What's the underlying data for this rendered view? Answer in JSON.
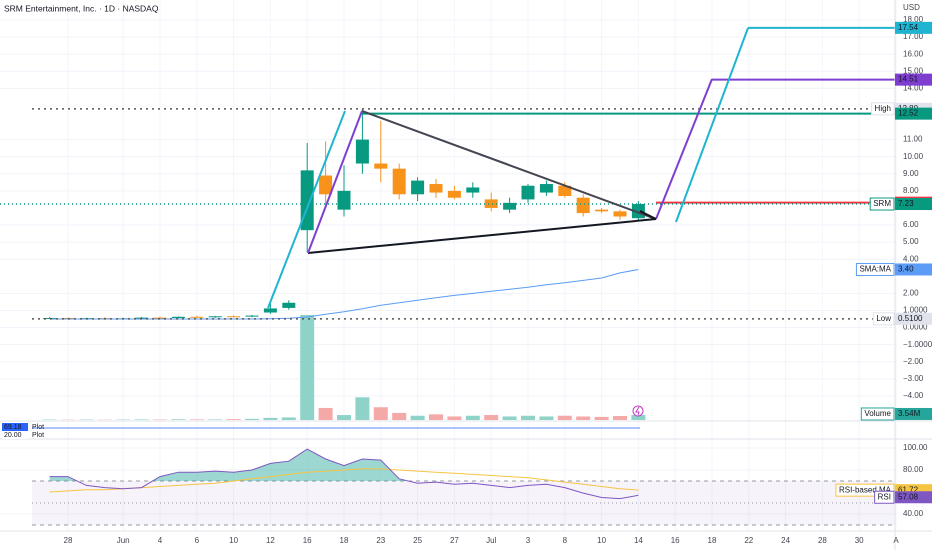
{
  "header": {
    "title": "SRM Entertainment, Inc. · 1D · NASDAQ",
    "currency": "USD"
  },
  "chart_data": {
    "type": "candlestick",
    "categories": [
      null,
      "28",
      null,
      null,
      "Jun",
      null,
      "4",
      null,
      "6",
      null,
      "10",
      null,
      "12",
      null,
      "16",
      null,
      "18",
      null,
      "23",
      null,
      "25",
      null,
      "27",
      null,
      "Jul",
      null,
      "3",
      null,
      "8",
      null,
      "10",
      null,
      "14",
      null,
      "16",
      null,
      "18",
      null,
      "22",
      null,
      "24",
      null,
      "28",
      null,
      "30",
      null,
      "A"
    ],
    "series": [
      {
        "name": "SRM",
        "up_color": "#089981",
        "down_color": "#f7931a",
        "open": [
          0.55,
          0.56,
          0.53,
          0.55,
          0.52,
          0.54,
          0.58,
          0.56,
          0.63,
          0.6,
          0.66,
          0.64,
          0.88,
          1.15,
          5.7,
          8.9,
          6.9,
          9.6,
          9.6,
          9.3,
          7.8,
          8.4,
          8.0,
          7.9,
          7.5,
          6.9,
          7.5,
          7.9,
          8.3,
          7.6,
          6.9,
          6.8,
          6.4,
          null,
          null,
          null,
          null,
          null,
          null,
          null,
          null,
          null,
          null,
          null,
          null,
          null,
          null
        ],
        "high": [
          0.62,
          0.6,
          0.58,
          0.6,
          0.57,
          0.62,
          0.64,
          0.66,
          0.7,
          0.68,
          0.72,
          0.74,
          1.4,
          1.6,
          10.8,
          10.9,
          9.5,
          12.8,
          12.1,
          9.6,
          8.8,
          8.7,
          8.3,
          8.5,
          7.9,
          7.6,
          8.4,
          8.6,
          8.5,
          7.8,
          7.0,
          6.9,
          7.4,
          null,
          null,
          null,
          null,
          null,
          null,
          null,
          null,
          null,
          null,
          null,
          null,
          null,
          null
        ],
        "low": [
          0.5,
          0.51,
          0.5,
          0.51,
          0.5,
          0.52,
          0.54,
          0.54,
          0.58,
          0.57,
          0.6,
          0.6,
          0.8,
          1.05,
          4.4,
          7.2,
          6.5,
          9.0,
          8.5,
          7.5,
          7.4,
          7.6,
          7.5,
          7.6,
          6.8,
          6.7,
          7.3,
          7.7,
          7.6,
          6.5,
          6.7,
          6.3,
          6.2,
          null,
          null,
          null,
          null,
          null,
          null,
          null,
          null,
          null,
          null,
          null,
          null,
          null,
          null
        ],
        "close": [
          0.56,
          0.53,
          0.55,
          0.52,
          0.54,
          0.58,
          0.56,
          0.63,
          0.6,
          0.66,
          0.64,
          0.7,
          1.12,
          1.45,
          9.2,
          7.8,
          8.0,
          11.0,
          9.3,
          7.8,
          8.6,
          7.9,
          7.6,
          8.2,
          7.0,
          7.3,
          8.3,
          8.4,
          7.7,
          6.7,
          6.8,
          6.5,
          7.23,
          null,
          null,
          null,
          null,
          null,
          null,
          null,
          null,
          null,
          null,
          null,
          null,
          null,
          null
        ]
      }
    ],
    "sma": {
      "name": "SMA:MA",
      "color": "#5b9cf6",
      "values": [
        0.5,
        0.5,
        0.5,
        0.5,
        0.5,
        0.5,
        0.5,
        0.5,
        0.5,
        0.5,
        0.5,
        0.5,
        0.52,
        0.55,
        0.62,
        0.78,
        0.92,
        1.1,
        1.3,
        1.45,
        1.6,
        1.75,
        1.88,
        2.0,
        2.12,
        2.24,
        2.36,
        2.5,
        2.62,
        2.76,
        2.9,
        3.2,
        3.4,
        null,
        null,
        null,
        null,
        null,
        null,
        null,
        null,
        null,
        null,
        null,
        null,
        null,
        null
      ]
    },
    "volume": {
      "name": "Volume",
      "label": "3.54M",
      "up_color": "#8fd3c8",
      "down_color": "#f5a8a8",
      "values": [
        0.3,
        0.2,
        0.3,
        0.2,
        0.3,
        0.4,
        0.3,
        0.5,
        0.4,
        0.4,
        0.6,
        0.8,
        1.5,
        1.8,
        74,
        8.5,
        3.5,
        16,
        9,
        5,
        3,
        4,
        2.5,
        3,
        3.5,
        2.5,
        3,
        2.5,
        3,
        2.5,
        2.2,
        2.8,
        3.54,
        null,
        null,
        null,
        null,
        null,
        null,
        null,
        null,
        null,
        null,
        null,
        null,
        null,
        null
      ]
    },
    "ylim": [
      -5.41,
      19.17
    ],
    "yticks": [
      {
        "value": 18,
        "label": "18.00"
      },
      {
        "value": 17,
        "label": "17.00"
      },
      {
        "value": 16,
        "label": "16.00"
      },
      {
        "value": 15,
        "label": "15.00"
      },
      {
        "value": 14,
        "label": "14.00"
      },
      {
        "value": 11,
        "label": "11.00"
      },
      {
        "value": 10,
        "label": "10.00"
      },
      {
        "value": 9,
        "label": "9.00"
      },
      {
        "value": 8,
        "label": "8.00"
      },
      {
        "value": 6,
        "label": "6.00"
      },
      {
        "value": 5,
        "label": "5.00"
      },
      {
        "value": 4,
        "label": "4.00"
      },
      {
        "value": 2,
        "label": "2.00"
      },
      {
        "value": 1,
        "label": "1.0000"
      },
      {
        "value": 0,
        "label": "0.0000"
      },
      {
        "value": -1,
        "label": "−1.0000"
      },
      {
        "value": -2,
        "label": "−2.00"
      },
      {
        "value": -3,
        "label": "−3.00"
      },
      {
        "value": -4,
        "label": "−4.00"
      }
    ],
    "grid": true,
    "markers": [
      {
        "name": "High",
        "value": 12.8,
        "label": "12.80",
        "color": "#e0e3eb"
      },
      {
        "value": 12.52,
        "color": "#089981"
      },
      {
        "value": 14.51,
        "color": "#7e3fd1"
      },
      {
        "value": 17.54,
        "color": "#1fb5d0"
      },
      {
        "value": 7.31,
        "color": "#f23645"
      },
      {
        "name": "SRM",
        "value": 7.23,
        "color": "#089981"
      },
      {
        "name": "SMA:MA",
        "value": 3.4,
        "label": "3.40",
        "color": "#5b9cf6"
      },
      {
        "name": "Low",
        "value": 0.51,
        "label": "0.5100",
        "color": "#e0e3eb"
      }
    ],
    "plots": [
      {
        "name": "Plot",
        "label": "69.18"
      },
      {
        "name": "Plot",
        "label": "20.00"
      }
    ],
    "rsi": {
      "name": "RSI",
      "color": "#7e57c2",
      "ma_name": "RSI-based MA",
      "ma_color": "#f5c542",
      "values": [
        74,
        74,
        66,
        64,
        63,
        64,
        74,
        78,
        78,
        79,
        78,
        80,
        86,
        88,
        99,
        90,
        84,
        90,
        89,
        72,
        68,
        69,
        67,
        68,
        66,
        64,
        66,
        67,
        64,
        59,
        55,
        54,
        57.08,
        null,
        null,
        null,
        null,
        null,
        null,
        null,
        null,
        null,
        null,
        null,
        null,
        null,
        null
      ],
      "ma_values": [
        60,
        61,
        62,
        62,
        63,
        64,
        65,
        66,
        67,
        68,
        70,
        72,
        74,
        76,
        78,
        79,
        80,
        81,
        81,
        80,
        79,
        78,
        77,
        76,
        75,
        74,
        73,
        71,
        69,
        67,
        65,
        63,
        61.72,
        null,
        null,
        null,
        null,
        null,
        null,
        null,
        null,
        null,
        null,
        null,
        null,
        null,
        null
      ],
      "ylim": [
        25.5,
        107.3
      ],
      "yticks": [
        {
          "value": 100,
          "label": "100.00"
        },
        {
          "value": 80,
          "label": "80.00"
        },
        {
          "value": 40,
          "label": "40.00"
        }
      ],
      "levels": [
        70,
        50,
        30
      ]
    }
  }
}
